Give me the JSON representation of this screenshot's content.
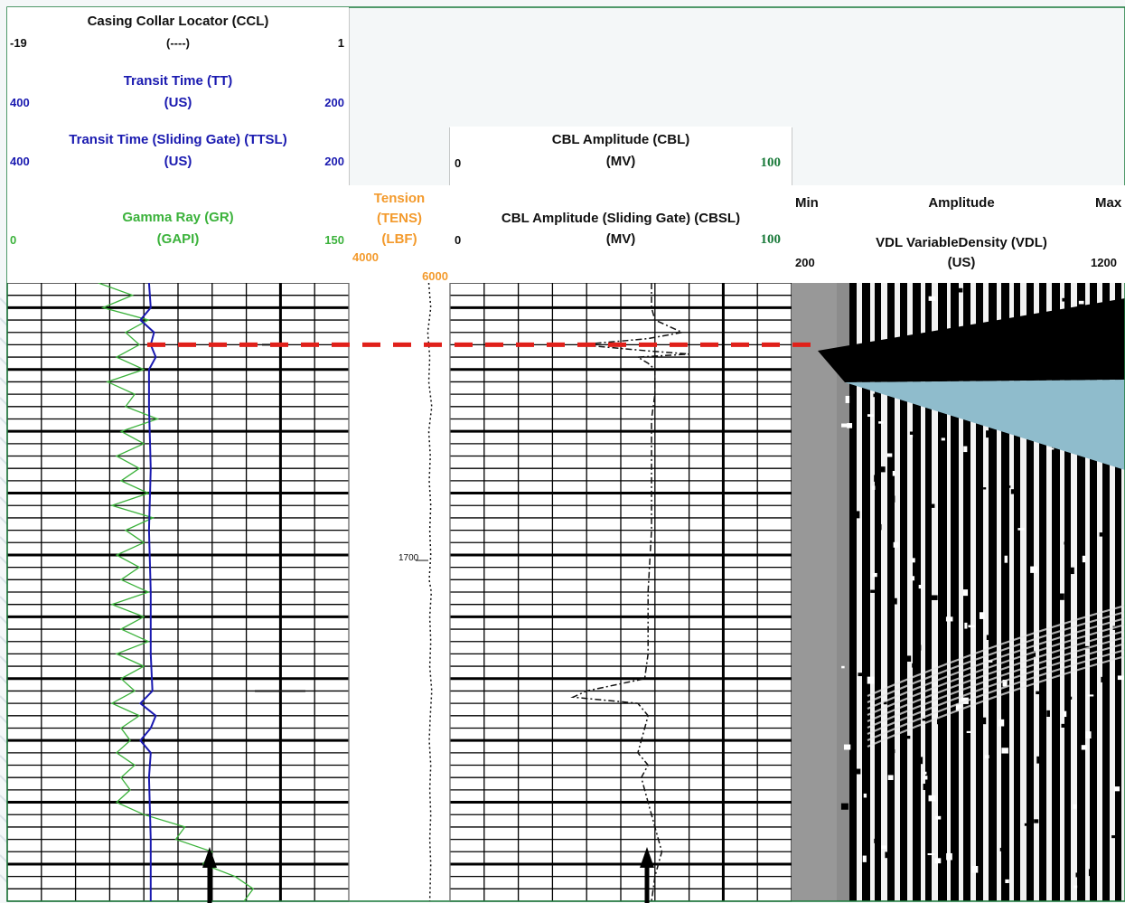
{
  "chart_data": {
    "type": "line",
    "title": "",
    "tracks": [
      {
        "id": "track1",
        "curves": [
          {
            "name": "Casing Collar Locator (CCL)",
            "unit": "(----)",
            "scale": [
              -19,
              1
            ],
            "color": "#111111"
          },
          {
            "name": "Transit Time (TT)",
            "unit": "(US)",
            "scale": [
              400,
              200
            ],
            "color": "#1a1ab0"
          },
          {
            "name": "Transit Time (Sliding Gate) (TTSL)",
            "unit": "(US)",
            "scale": [
              400,
              200
            ],
            "color": "#1a1ab0",
            "dashed": true
          },
          {
            "name": "Gamma Ray (GR)",
            "unit": "(GAPI)",
            "scale": [
              0,
              150
            ],
            "color": "#3bb23b"
          }
        ]
      },
      {
        "id": "depth",
        "curves": [
          {
            "name": "Tension",
            "mnemonic": "(TENS)",
            "unit": "(LBF)",
            "scale": [
              4000,
              6000
            ],
            "color": "#f39a2c"
          }
        ],
        "depth_label": "1700"
      },
      {
        "id": "track2",
        "curves": [
          {
            "name": "CBL Amplitude (CBL)",
            "unit": "(MV)",
            "scale": [
              0,
              100
            ],
            "color": "#111111"
          },
          {
            "name": "CBL Amplitude (Sliding Gate) (CBSL)",
            "unit": "(MV)",
            "scale": [
              0,
              100
            ],
            "color": "#111111",
            "dashed": true
          }
        ]
      },
      {
        "id": "track3",
        "curves": [
          {
            "name": "VDL VariableDensity (VDL)",
            "unit": "(US)",
            "scale": [
              200,
              1200
            ]
          }
        ],
        "colorbar": {
          "title": "Amplitude",
          "min_label": "Min",
          "max_label": "Max"
        }
      }
    ],
    "depth_range_ft": [
      1650,
      1750
    ],
    "marker_depth_ft": 1660,
    "gr_profile": [
      [
        1650,
        40
      ],
      [
        1652,
        55
      ],
      [
        1654,
        42
      ],
      [
        1656,
        62
      ],
      [
        1658,
        52
      ],
      [
        1660,
        58
      ],
      [
        1662,
        48
      ],
      [
        1664,
        60
      ],
      [
        1666,
        44
      ],
      [
        1668,
        56
      ],
      [
        1670,
        52
      ],
      [
        1672,
        66
      ],
      [
        1674,
        50
      ],
      [
        1676,
        60
      ],
      [
        1678,
        48
      ],
      [
        1680,
        58
      ],
      [
        1682,
        50
      ],
      [
        1684,
        62
      ],
      [
        1686,
        46
      ],
      [
        1688,
        64
      ],
      [
        1690,
        52
      ],
      [
        1692,
        60
      ],
      [
        1694,
        48
      ],
      [
        1696,
        58
      ],
      [
        1698,
        50
      ],
      [
        1700,
        62
      ],
      [
        1702,
        46
      ],
      [
        1704,
        60
      ],
      [
        1706,
        50
      ],
      [
        1708,
        62
      ],
      [
        1710,
        48
      ],
      [
        1712,
        60
      ],
      [
        1714,
        50
      ],
      [
        1716,
        56
      ],
      [
        1718,
        46
      ],
      [
        1720,
        58
      ],
      [
        1722,
        50
      ],
      [
        1724,
        54
      ],
      [
        1726,
        48
      ],
      [
        1728,
        56
      ],
      [
        1730,
        50
      ],
      [
        1732,
        54
      ],
      [
        1734,
        48
      ],
      [
        1736,
        60
      ],
      [
        1738,
        78
      ],
      [
        1740,
        74
      ],
      [
        1742,
        90
      ],
      [
        1744,
        86
      ],
      [
        1746,
        100
      ],
      [
        1748,
        108
      ],
      [
        1750,
        104
      ]
    ],
    "tt_profile": [
      [
        1650,
        317
      ],
      [
        1654,
        316
      ],
      [
        1656,
        322
      ],
      [
        1658,
        314
      ],
      [
        1660,
        316
      ],
      [
        1662,
        313
      ],
      [
        1664,
        317
      ],
      [
        1670,
        317
      ],
      [
        1680,
        316
      ],
      [
        1690,
        317
      ],
      [
        1700,
        316
      ],
      [
        1710,
        316
      ],
      [
        1716,
        315
      ],
      [
        1718,
        322
      ],
      [
        1720,
        313
      ],
      [
        1722,
        316
      ],
      [
        1724,
        322
      ],
      [
        1726,
        316
      ],
      [
        1730,
        317
      ],
      [
        1740,
        316
      ],
      [
        1750,
        316
      ]
    ],
    "tens_profile": [
      [
        1650,
        5580
      ],
      [
        1654,
        5620
      ],
      [
        1658,
        5560
      ],
      [
        1662,
        5600
      ],
      [
        1666,
        5580
      ],
      [
        1670,
        5640
      ],
      [
        1674,
        5580
      ],
      [
        1678,
        5610
      ],
      [
        1682,
        5590
      ],
      [
        1686,
        5620
      ],
      [
        1690,
        5600
      ],
      [
        1694,
        5620
      ],
      [
        1698,
        5590
      ],
      [
        1700,
        5630
      ],
      [
        1704,
        5600
      ],
      [
        1708,
        5620
      ],
      [
        1712,
        5600
      ],
      [
        1716,
        5640
      ],
      [
        1720,
        5610
      ],
      [
        1724,
        5590
      ],
      [
        1728,
        5620
      ],
      [
        1732,
        5600
      ],
      [
        1736,
        5620
      ],
      [
        1740,
        5600
      ],
      [
        1744,
        5620
      ],
      [
        1750,
        5600
      ]
    ],
    "cbl_profile": [
      [
        1650,
        59
      ],
      [
        1654,
        59
      ],
      [
        1656,
        60
      ],
      [
        1658,
        68
      ],
      [
        1659,
        58
      ],
      [
        1660,
        38
      ],
      [
        1661,
        58
      ],
      [
        1661.5,
        70
      ],
      [
        1662,
        55
      ],
      [
        1663,
        58
      ],
      [
        1664,
        60
      ],
      [
        1668,
        60
      ],
      [
        1672,
        59
      ],
      [
        1680,
        59
      ],
      [
        1690,
        59
      ],
      [
        1700,
        58
      ],
      [
        1710,
        58
      ],
      [
        1714,
        57
      ],
      [
        1716,
        40
      ],
      [
        1717,
        36
      ],
      [
        1718,
        55
      ],
      [
        1720,
        58
      ],
      [
        1722,
        57
      ],
      [
        1726,
        55
      ],
      [
        1728,
        58
      ],
      [
        1730,
        56
      ],
      [
        1734,
        58
      ],
      [
        1738,
        60
      ],
      [
        1742,
        62
      ],
      [
        1746,
        60
      ],
      [
        1750,
        59
      ]
    ],
    "bottom_arrows": [
      "track1-tt",
      "track2-cbl"
    ]
  }
}
